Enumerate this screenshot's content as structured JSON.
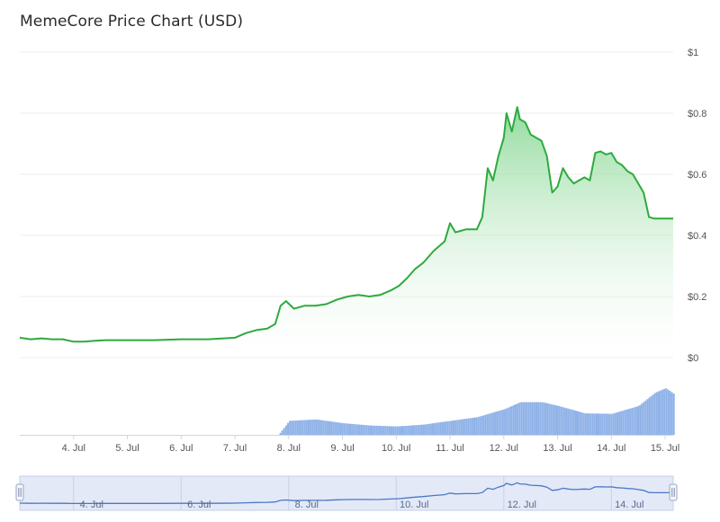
{
  "header": {
    "title": "MemeCore Price Chart (USD)"
  },
  "colors": {
    "line": "#2eaa3f",
    "area_top": "#6fcf7d",
    "volume": "#8fb2e8",
    "navigator_bg": "#e3e9f7",
    "navigator_line": "#4a78c4",
    "grid": "#ececec"
  },
  "chart_data": {
    "type": "line",
    "title": "MemeCore Price Chart (USD)",
    "y_ticks": [
      "$0",
      "$0.2",
      "$0.4",
      "$0.6",
      "$0.8",
      "$1"
    ],
    "ylim": [
      0,
      1
    ],
    "x_ticks": [
      "4. Jul",
      "5. Jul",
      "6. Jul",
      "7. Jul",
      "8. Jul",
      "9. Jul",
      "10. Jul",
      "11. Jul",
      "12. Jul",
      "13. Jul",
      "14. Jul",
      "15. Jul"
    ],
    "xlim": [
      3.0,
      15.15
    ],
    "price": {
      "x": [
        3.0,
        3.2,
        3.4,
        3.6,
        3.8,
        4.0,
        4.2,
        4.4,
        4.6,
        4.8,
        5.0,
        5.5,
        6.0,
        6.5,
        7.0,
        7.2,
        7.4,
        7.6,
        7.75,
        7.85,
        7.95,
        8.1,
        8.3,
        8.5,
        8.7,
        8.9,
        9.1,
        9.3,
        9.5,
        9.7,
        9.9,
        10.05,
        10.2,
        10.35,
        10.5,
        10.7,
        10.9,
        11.0,
        11.1,
        11.3,
        11.5,
        11.6,
        11.7,
        11.8,
        11.9,
        12.0,
        12.05,
        12.15,
        12.25,
        12.3,
        12.4,
        12.5,
        12.6,
        12.7,
        12.8,
        12.9,
        13.0,
        13.1,
        13.2,
        13.3,
        13.4,
        13.5,
        13.6,
        13.7,
        13.8,
        13.9,
        14.0,
        14.1,
        14.2,
        14.3,
        14.4,
        14.5,
        14.6,
        14.7,
        14.8,
        14.9,
        15.0,
        15.1,
        15.15
      ],
      "y": [
        0.065,
        0.06,
        0.063,
        0.06,
        0.06,
        0.052,
        0.052,
        0.055,
        0.057,
        0.057,
        0.057,
        0.057,
        0.06,
        0.06,
        0.065,
        0.08,
        0.09,
        0.095,
        0.11,
        0.17,
        0.185,
        0.16,
        0.17,
        0.17,
        0.175,
        0.19,
        0.2,
        0.205,
        0.2,
        0.205,
        0.22,
        0.235,
        0.26,
        0.29,
        0.31,
        0.35,
        0.38,
        0.44,
        0.41,
        0.42,
        0.42,
        0.46,
        0.62,
        0.58,
        0.66,
        0.72,
        0.8,
        0.74,
        0.82,
        0.78,
        0.77,
        0.73,
        0.72,
        0.71,
        0.66,
        0.54,
        0.56,
        0.62,
        0.59,
        0.57,
        0.58,
        0.59,
        0.58,
        0.67,
        0.675,
        0.665,
        0.67,
        0.64,
        0.63,
        0.61,
        0.6,
        0.57,
        0.54,
        0.46,
        0.455,
        0.455,
        0.455,
        0.455,
        0.455
      ]
    },
    "volume": {
      "x": [
        3.0,
        7.0,
        7.8,
        8.0,
        8.5,
        9.0,
        9.5,
        10.0,
        10.5,
        11.0,
        11.5,
        12.0,
        12.3,
        12.7,
        13.0,
        13.5,
        14.0,
        14.5,
        14.8,
        15.0,
        15.15
      ],
      "y": [
        0.0,
        0.0,
        0.0,
        0.3,
        0.33,
        0.25,
        0.2,
        0.18,
        0.22,
        0.3,
        0.38,
        0.55,
        0.7,
        0.7,
        0.62,
        0.46,
        0.45,
        0.62,
        0.9,
        1.0,
        0.88
      ]
    }
  },
  "navigator": {
    "x_ticks": [
      "4. Jul",
      "6. Jul",
      "8. Jul",
      "10. Jul",
      "12. Jul",
      "14. Jul"
    ]
  }
}
